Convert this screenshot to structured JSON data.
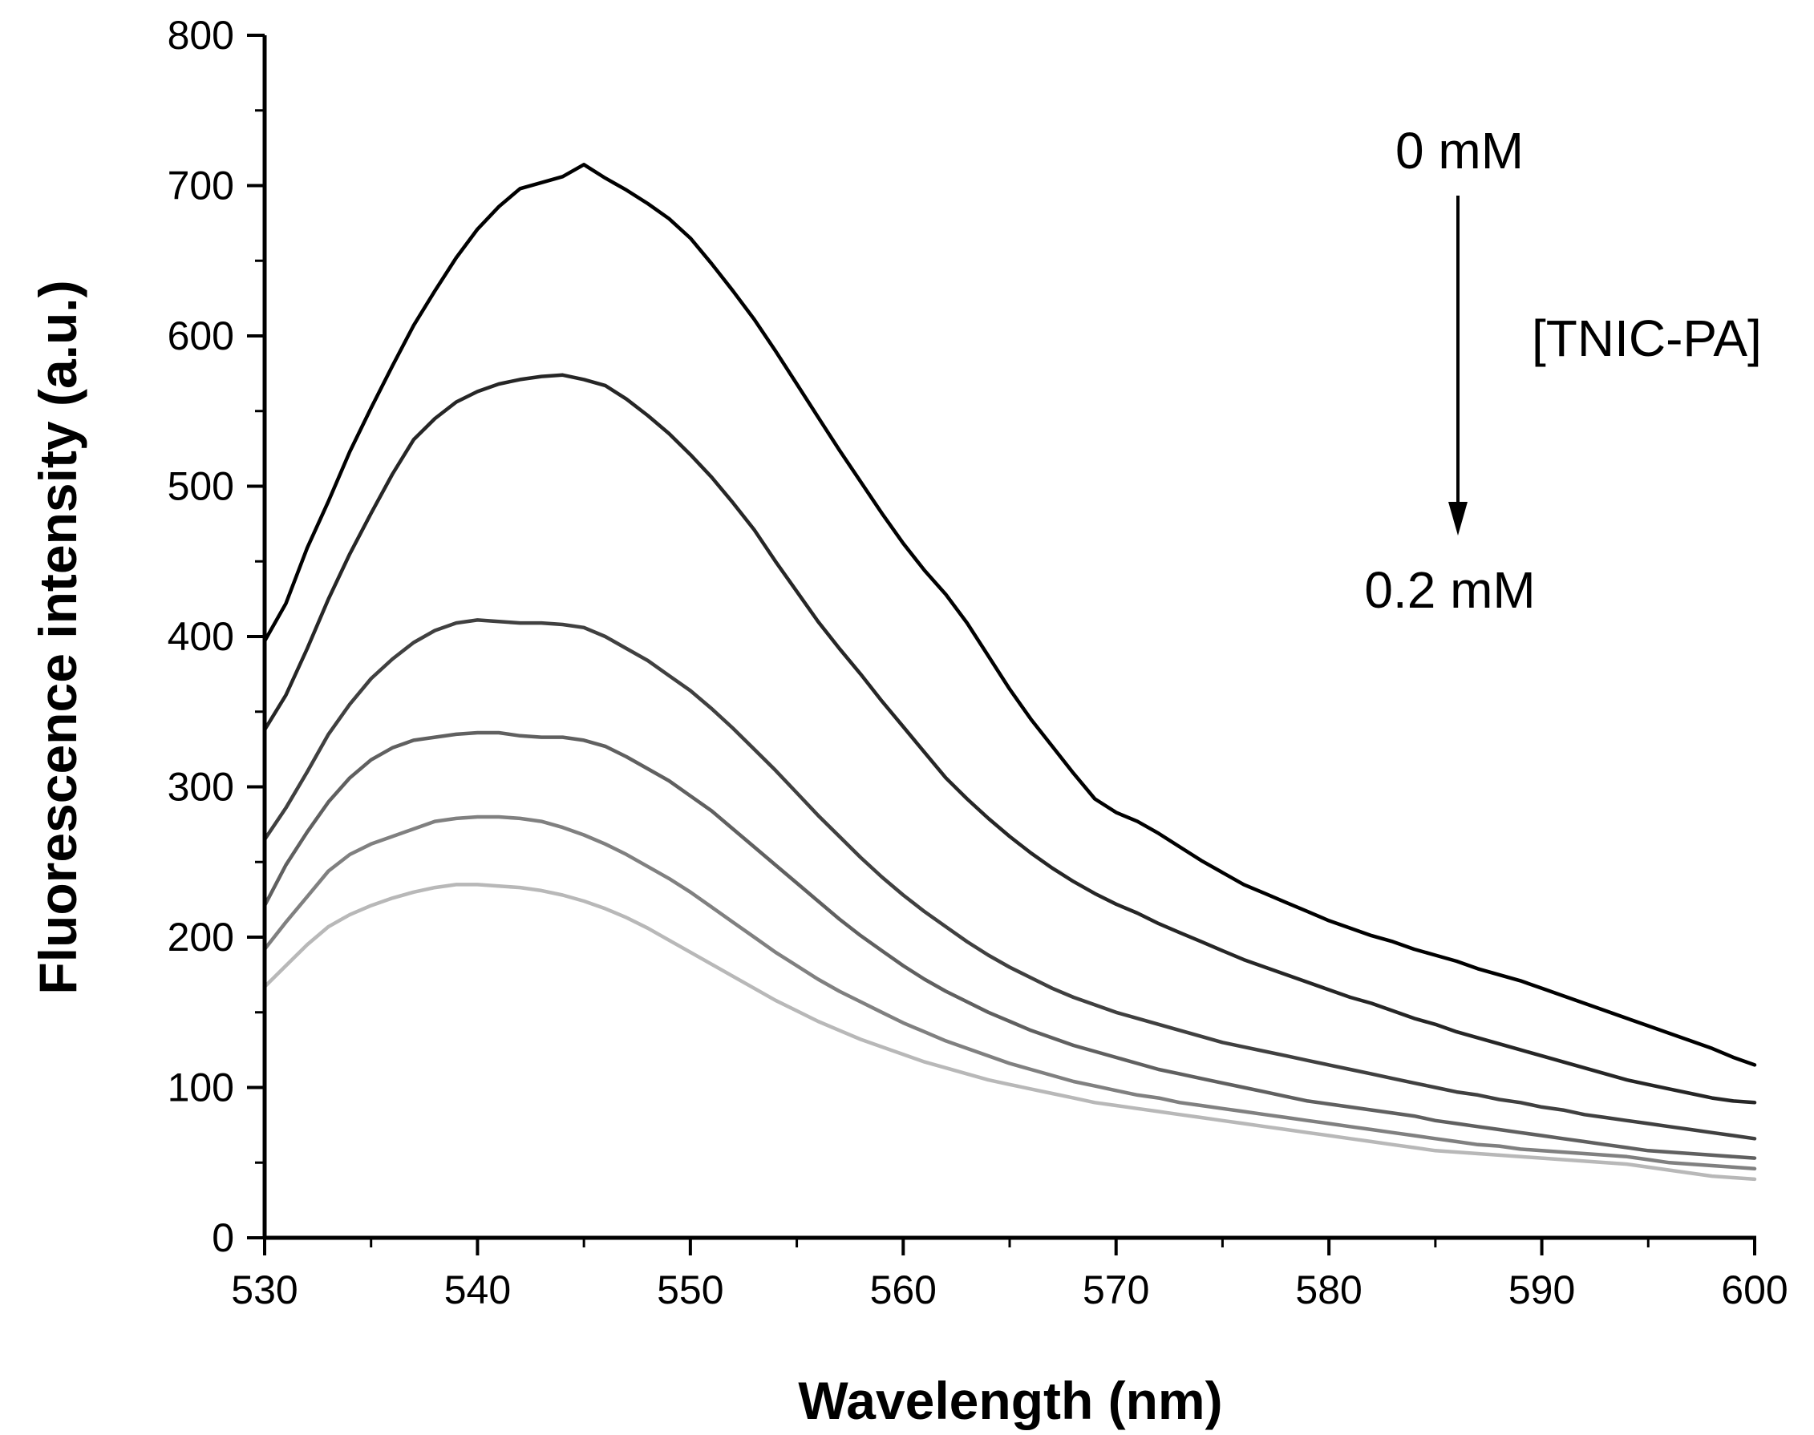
{
  "chart_data": {
    "type": "line",
    "title": "",
    "xlabel": "Wavelength (nm)",
    "ylabel": "Fluorescence intensity (a.u.)",
    "xlim": [
      530,
      600
    ],
    "ylim": [
      0,
      800
    ],
    "xticks": [
      530,
      540,
      550,
      560,
      570,
      580,
      590,
      600
    ],
    "xtick_labels": [
      "530",
      "540",
      "550",
      "560",
      "570",
      "580",
      "590",
      "600"
    ],
    "yticks": [
      0,
      100,
      200,
      300,
      400,
      500,
      600,
      700,
      800
    ],
    "ytick_labels": [
      "0",
      "100",
      "200",
      "300",
      "400",
      "500",
      "600",
      "700",
      "800"
    ],
    "x_minor_step": 5,
    "y_minor_step": 50,
    "grid": false,
    "x": [
      530,
      531,
      532,
      533,
      534,
      535,
      536,
      537,
      538,
      539,
      540,
      541,
      542,
      543,
      544,
      545,
      546,
      547,
      548,
      549,
      550,
      551,
      552,
      553,
      554,
      555,
      556,
      557,
      558,
      559,
      560,
      561,
      562,
      563,
      564,
      565,
      566,
      567,
      568,
      569,
      570,
      571,
      572,
      573,
      574,
      575,
      576,
      577,
      578,
      579,
      580,
      581,
      582,
      583,
      584,
      585,
      586,
      587,
      588,
      589,
      590,
      591,
      592,
      593,
      594,
      595,
      596,
      597,
      598,
      599,
      600
    ],
    "series": [
      {
        "name": "0 mM",
        "color": "#000000",
        "values": [
          397,
          422,
          459,
          490,
          523,
          552,
          580,
          607,
          630,
          652,
          671,
          686,
          698,
          702,
          706,
          714,
          705,
          697,
          688,
          678,
          665,
          648,
          630,
          611,
          590,
          568,
          546,
          524,
          503,
          482,
          462,
          444,
          428,
          409,
          387,
          365,
          345,
          327,
          309,
          292,
          283,
          277,
          269,
          260,
          251,
          243,
          235,
          229,
          223,
          217,
          211,
          206,
          201,
          197,
          192,
          188,
          184,
          179,
          175,
          171,
          166,
          161,
          156,
          151,
          146,
          141,
          136,
          131,
          126,
          120,
          115
        ]
      },
      {
        "name": "",
        "color": "#262626",
        "values": [
          338,
          361,
          392,
          425,
          455,
          482,
          508,
          531,
          545,
          556,
          563,
          568,
          571,
          573,
          574,
          571,
          567,
          558,
          547,
          535,
          521,
          506,
          489,
          471,
          450,
          430,
          410,
          392,
          375,
          357,
          340,
          323,
          306,
          292,
          279,
          267,
          256,
          246,
          237,
          229,
          222,
          216,
          209,
          203,
          197,
          191,
          185,
          180,
          175,
          170,
          165,
          160,
          156,
          151,
          146,
          142,
          137,
          133,
          129,
          125,
          121,
          117,
          113,
          109,
          105,
          102,
          99,
          96,
          93,
          91,
          90
        ]
      },
      {
        "name": "",
        "color": "#404040",
        "values": [
          265,
          286,
          310,
          335,
          355,
          372,
          385,
          396,
          404,
          409,
          411,
          410,
          409,
          409,
          408,
          406,
          400,
          392,
          384,
          374,
          364,
          352,
          339,
          325,
          311,
          296,
          281,
          267,
          253,
          240,
          228,
          217,
          207,
          197,
          188,
          180,
          173,
          166,
          160,
          155,
          150,
          146,
          142,
          138,
          134,
          130,
          127,
          124,
          121,
          118,
          115,
          112,
          109,
          106,
          103,
          100,
          97,
          95,
          92,
          90,
          87,
          85,
          82,
          80,
          78,
          76,
          74,
          72,
          70,
          68,
          66
        ]
      },
      {
        "name": "",
        "color": "#606060",
        "values": [
          221,
          248,
          270,
          290,
          306,
          318,
          326,
          331,
          333,
          335,
          336,
          336,
          334,
          333,
          333,
          331,
          327,
          320,
          312,
          304,
          294,
          284,
          272,
          260,
          248,
          236,
          224,
          212,
          201,
          191,
          181,
          172,
          164,
          157,
          150,
          144,
          138,
          133,
          128,
          124,
          120,
          116,
          112,
          109,
          106,
          103,
          100,
          97,
          94,
          91,
          89,
          87,
          85,
          83,
          81,
          78,
          76,
          74,
          72,
          70,
          68,
          66,
          64,
          62,
          60,
          58,
          57,
          56,
          55,
          54,
          53
        ]
      },
      {
        "name": "",
        "color": "#808080",
        "values": [
          192,
          210,
          227,
          244,
          255,
          262,
          267,
          272,
          277,
          279,
          280,
          280,
          279,
          277,
          273,
          268,
          262,
          255,
          247,
          239,
          230,
          220,
          210,
          200,
          190,
          181,
          172,
          164,
          157,
          150,
          143,
          137,
          131,
          126,
          121,
          116,
          112,
          108,
          104,
          101,
          98,
          95,
          93,
          90,
          88,
          86,
          84,
          82,
          80,
          78,
          76,
          74,
          72,
          70,
          68,
          66,
          64,
          62,
          61,
          59,
          58,
          57,
          56,
          55,
          54,
          52,
          50,
          49,
          48,
          47,
          46
        ]
      },
      {
        "name": "0.2 mM",
        "color": "#b8b8b8",
        "values": [
          167,
          181,
          195,
          207,
          215,
          221,
          226,
          230,
          233,
          235,
          235,
          234,
          233,
          231,
          228,
          224,
          219,
          213,
          206,
          198,
          190,
          182,
          174,
          166,
          158,
          151,
          144,
          138,
          132,
          127,
          122,
          117,
          113,
          109,
          105,
          102,
          99,
          96,
          93,
          90,
          88,
          86,
          84,
          82,
          80,
          78,
          76,
          74,
          72,
          70,
          68,
          66,
          64,
          62,
          60,
          58,
          57,
          56,
          55,
          54,
          53,
          52,
          51,
          50,
          49,
          47,
          45,
          43,
          41,
          40,
          39
        ]
      }
    ],
    "annotations": {
      "top_label": "0 mM",
      "bottom_label": "0.2 mM",
      "arrow_label": "[TNIC-PA]",
      "arrow_direction": "down"
    }
  }
}
